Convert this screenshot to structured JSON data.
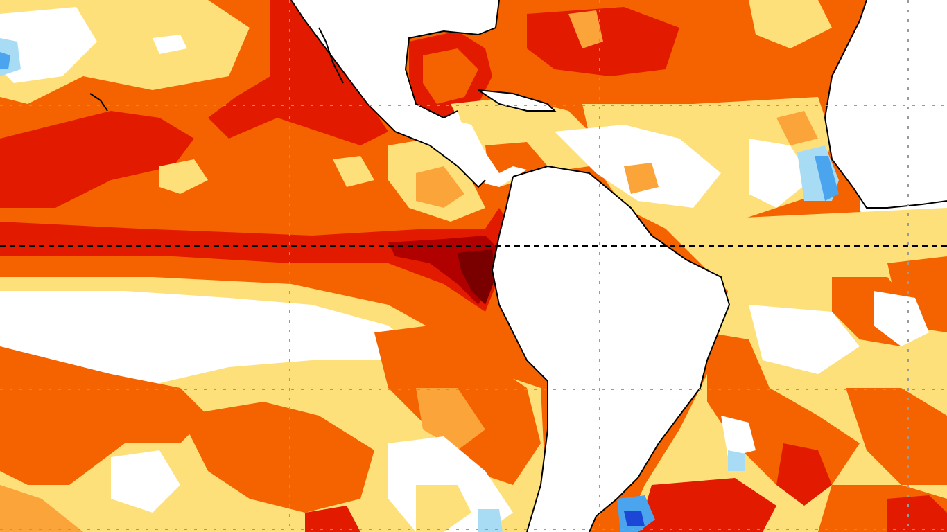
{
  "map": {
    "projection": "equirectangular",
    "features": [
      "sea-surface-temperature-anomaly-field",
      "coastline",
      "graticule",
      "equator"
    ],
    "colors": {
      "land": "#ffffff",
      "near_zero": "#ffffff",
      "warm_1": "#fde07a",
      "warm_2": "#fba43a",
      "warm_3": "#f56200",
      "warm_4": "#e21a00",
      "warm_5": "#b10000",
      "warm_6": "#7a0000",
      "cool_1": "#a8dcf5",
      "cool_2": "#4aa5ee",
      "cool_3": "#1c47d6",
      "coastline": "#000000",
      "graticule": "#9a9a9a",
      "equator": "#000000"
    }
  }
}
